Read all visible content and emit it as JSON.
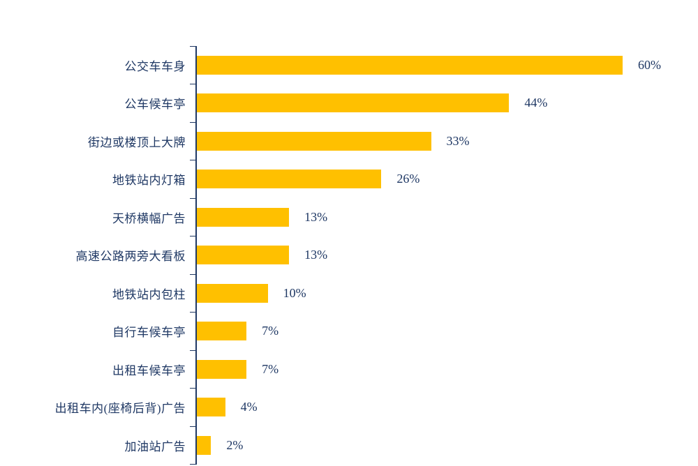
{
  "chart_data": {
    "type": "bar",
    "orientation": "horizontal",
    "title": "",
    "xlabel": "",
    "ylabel": "",
    "categories": [
      "公交车车身",
      "公车候车亭",
      "街边或楼顶上大牌",
      "地铁站内灯箱",
      "天桥横幅广告",
      "高速公路两旁大看板",
      "地铁站内包柱",
      "自行车候车亭",
      "出租车候车亭",
      "出租车内(座椅后背)广告",
      "加油站广告"
    ],
    "values": [
      60,
      44,
      33,
      26,
      13,
      13,
      10,
      7,
      7,
      4,
      2
    ],
    "value_labels": [
      "60%",
      "44%",
      "33%",
      "26%",
      "13%",
      "13%",
      "10%",
      "7%",
      "7%",
      "4%",
      "2%"
    ],
    "xlim": [
      0,
      62
    ],
    "grid": false,
    "legend": false,
    "bar_color": "#FFC000",
    "text_color": "#1F3864",
    "axis_color": "#1F3864"
  }
}
